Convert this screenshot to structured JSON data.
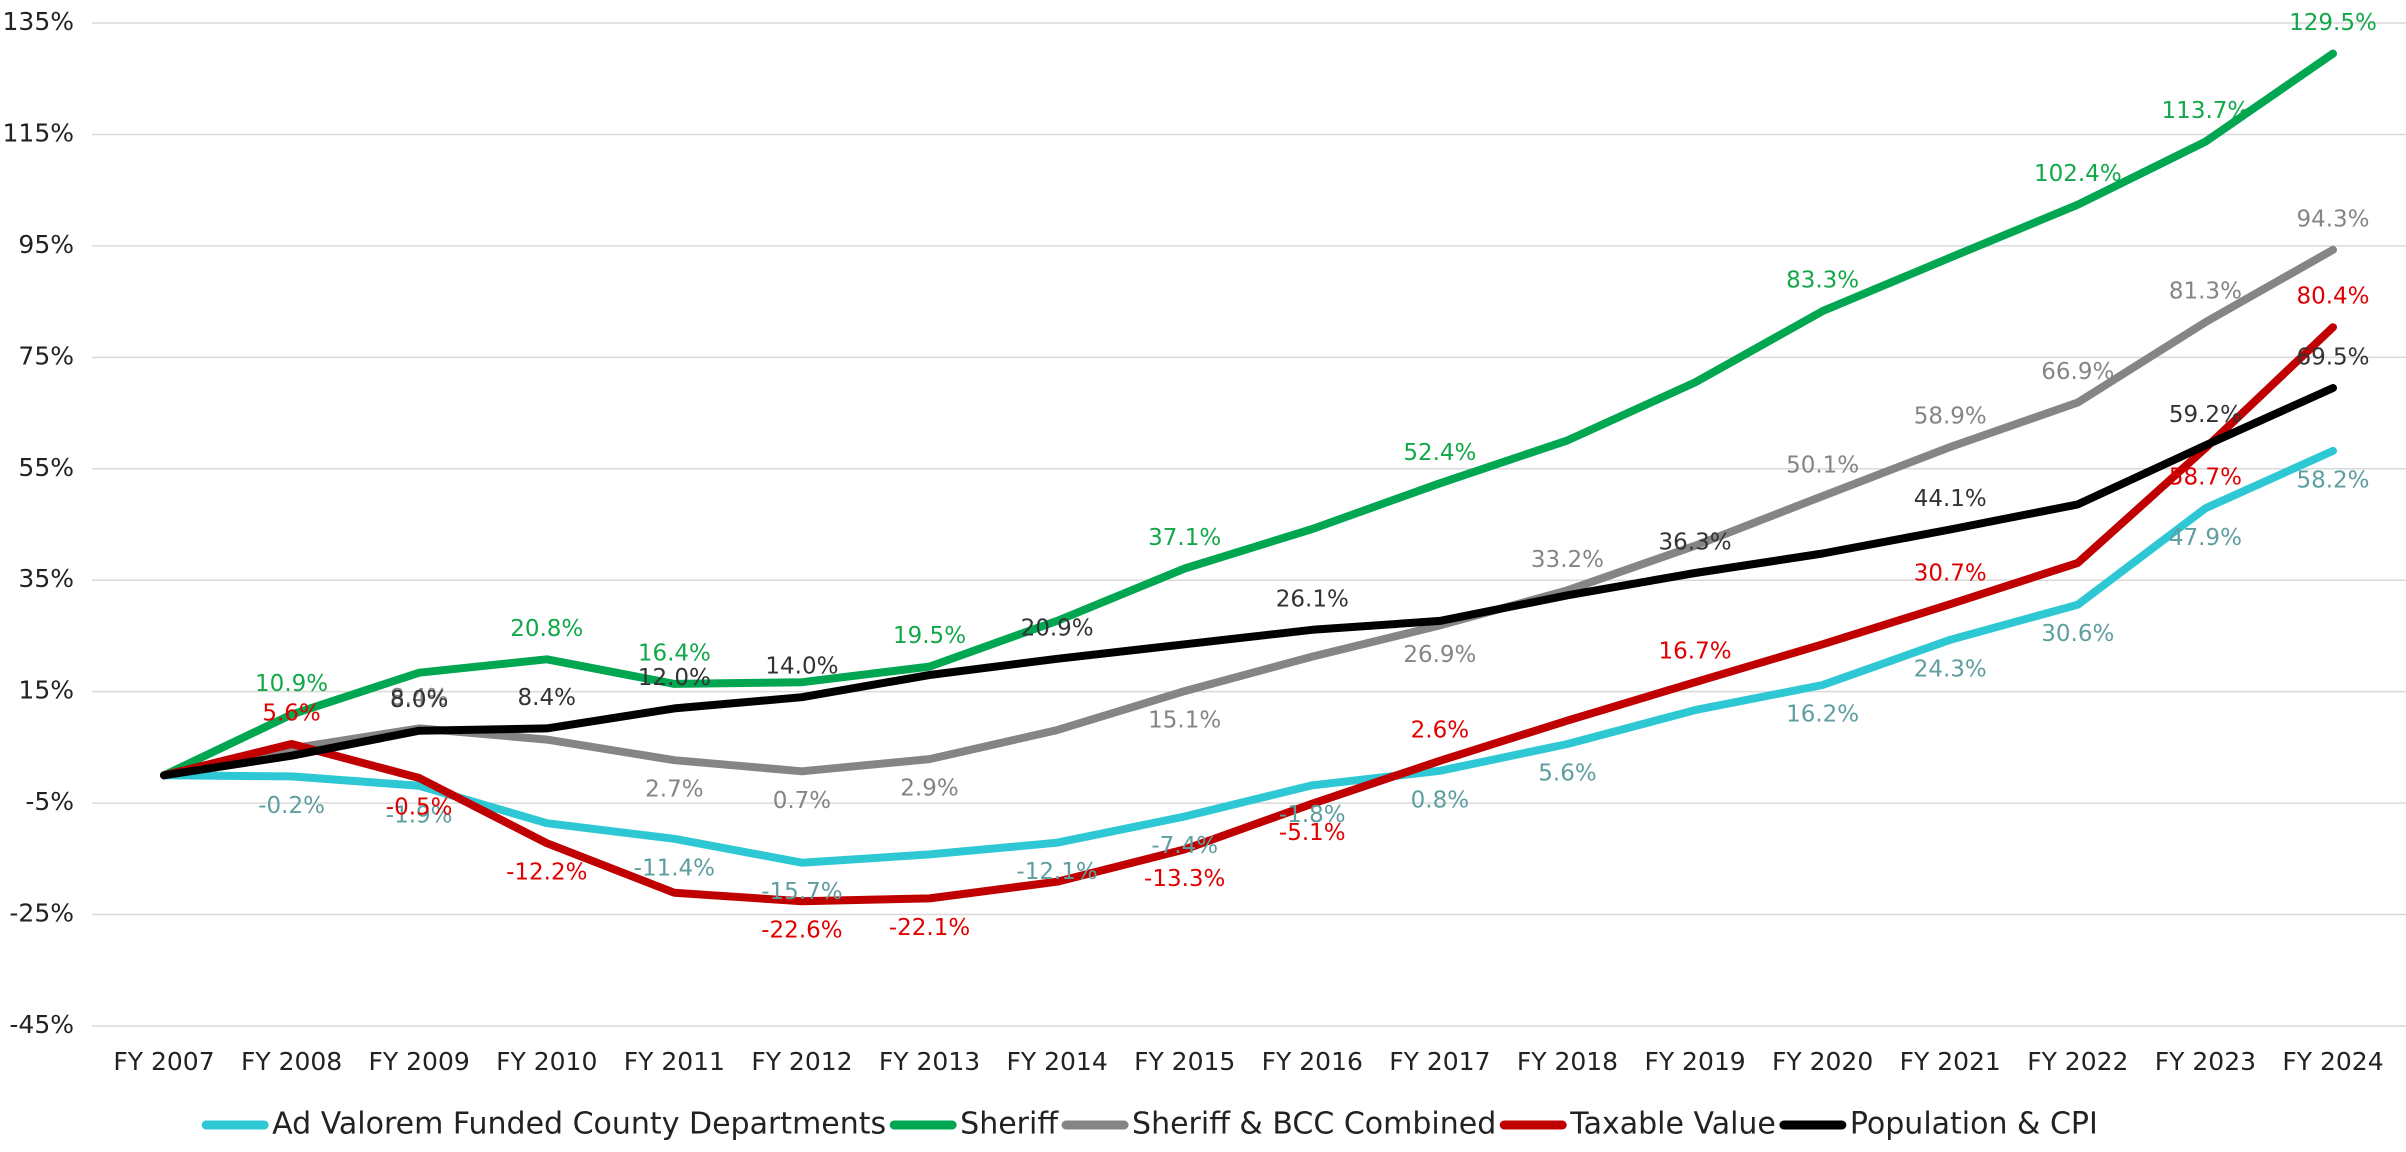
{
  "chart_data": {
    "type": "line",
    "categories": [
      "FY 2007",
      "FY 2008",
      "FY 2009",
      "FY 2010",
      "FY 2011",
      "FY 2012",
      "FY 2013",
      "FY 2014",
      "FY 2015",
      "FY 2016",
      "FY 2017",
      "FY 2018",
      "FY 2019",
      "FY 2020",
      "FY 2021",
      "FY 2022",
      "FY 2023",
      "FY 2024"
    ],
    "ylim": [
      -45,
      135
    ],
    "yticks": [
      {
        "value": -45,
        "label": "-45%"
      },
      {
        "value": -25,
        "label": "-25%"
      },
      {
        "value": -5,
        "label": "-5%"
      },
      {
        "value": 15,
        "label": "15%"
      },
      {
        "value": 35,
        "label": "35%"
      },
      {
        "value": 55,
        "label": "55%"
      },
      {
        "value": 75,
        "label": "75%"
      },
      {
        "value": 95,
        "label": "95%"
      },
      {
        "value": 115,
        "label": "115%"
      },
      {
        "value": 135,
        "label": "135%"
      }
    ],
    "grid": true,
    "legend": "bottom",
    "series": [
      {
        "name": "Ad Valorem Funded County Departments",
        "color": "#2ec8d4",
        "label_color": "#5f9ea0",
        "values": [
          0,
          -0.2,
          -1.9,
          -8.6,
          -11.4,
          -15.7,
          -14.2,
          -12.1,
          -7.4,
          -1.8,
          0.8,
          5.6,
          11.7,
          16.2,
          24.3,
          30.6,
          47.9,
          58.2
        ],
        "value_labels": [
          null,
          "-0.2%",
          "-1.9%",
          null,
          "-11.4%",
          "-15.7%",
          null,
          "-12.1%",
          "-7.4%",
          "-1.8%",
          "0.8%",
          "5.6%",
          null,
          "16.2%",
          "24.3%",
          "30.6%",
          "47.9%",
          "58.2%"
        ]
      },
      {
        "name": "Sheriff",
        "color": "#00a650",
        "label_color": "#12a84a",
        "values": [
          0,
          10.9,
          18.4,
          20.8,
          16.4,
          16.7,
          19.5,
          27.7,
          37.1,
          44.2,
          52.4,
          60.1,
          70.5,
          83.3,
          92.9,
          102.4,
          113.7,
          129.5
        ],
        "value_labels": [
          null,
          "10.9%",
          null,
          "20.8%",
          "16.4%",
          null,
          "19.5%",
          null,
          "37.1%",
          null,
          "52.4%",
          null,
          null,
          "83.3%",
          null,
          "102.4%",
          "113.7%",
          "129.5%"
        ]
      },
      {
        "name": "Sheriff & BCC Combined",
        "color": "#858585",
        "label_color": "#858585",
        "values": [
          0,
          4.8,
          8.4,
          6.4,
          2.7,
          0.7,
          2.9,
          8.1,
          15.1,
          21.3,
          26.9,
          33.2,
          41.2,
          50.1,
          58.9,
          66.9,
          81.3,
          94.3
        ],
        "value_labels": [
          null,
          null,
          "8.4%",
          null,
          "2.7%",
          "0.7%",
          "2.9%",
          null,
          "15.1%",
          null,
          "26.9%",
          "33.2%",
          null,
          "50.1%",
          "58.9%",
          "66.9%",
          "81.3%",
          "94.3%"
        ]
      },
      {
        "name": "Taxable Value",
        "color": "#c00000",
        "label_color": "#e00000",
        "values": [
          0,
          5.6,
          -0.5,
          -12.2,
          -21.1,
          -22.6,
          -22.1,
          -19.1,
          -13.3,
          -5.1,
          2.6,
          9.8,
          16.7,
          23.5,
          30.7,
          38.1,
          58.7,
          80.4
        ],
        "value_labels": [
          null,
          "5.6%",
          "-0.5%",
          "-12.2%",
          null,
          "-22.6%",
          "-22.1%",
          null,
          "-13.3%",
          "-5.1%",
          "2.6%",
          null,
          "16.7%",
          null,
          "30.7%",
          null,
          "58.7%",
          "80.4%"
        ]
      },
      {
        "name": "Population & CPI",
        "color": "#000000",
        "label_color": "#333333",
        "values": [
          0,
          3.5,
          8.0,
          8.4,
          12.0,
          14.0,
          18.0,
          20.9,
          23.5,
          26.1,
          27.7,
          32.3,
          36.3,
          39.8,
          44.1,
          48.6,
          59.2,
          69.5
        ],
        "value_labels": [
          null,
          null,
          "8.0%",
          "8.4%",
          "12.0%",
          "14.0%",
          null,
          "20.9%",
          null,
          "26.1%",
          null,
          null,
          "36.3%",
          null,
          "44.1%",
          null,
          "59.2%",
          "69.5%"
        ]
      }
    ]
  }
}
